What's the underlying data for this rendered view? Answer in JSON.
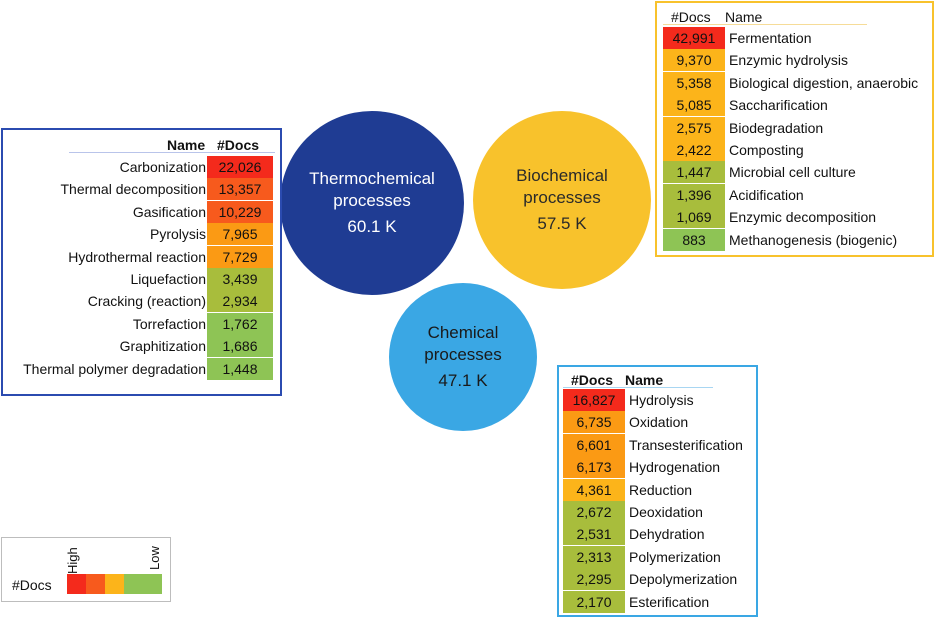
{
  "colors": {
    "thermo": "#1f3c93",
    "bio": "#f8c22c",
    "chem": "#3aa7e4",
    "level_red": "#f42a1c",
    "level_orange_red": "#f75a1d",
    "level_orange": "#fb9a14",
    "level_amber": "#fcb41a",
    "level_olive": "#a8bd3c",
    "level_green": "#8ec455"
  },
  "circles": {
    "thermo": {
      "line1": "Thermochemical",
      "line2": "processes",
      "value": "60.1 K"
    },
    "bio": {
      "line1": "Biochemical",
      "line2": "processes",
      "value": "57.5 K"
    },
    "chem": {
      "line1": "Chemical",
      "line2": "processes",
      "value": "47.1 K"
    }
  },
  "thermo_table": {
    "header_name": "Name",
    "header_docs": "#Docs",
    "rows": [
      {
        "name": "Carbonization",
        "docs": "22,026",
        "level": "red"
      },
      {
        "name": "Thermal decomposition",
        "docs": "13,357",
        "level": "orange_red"
      },
      {
        "name": "Gasification",
        "docs": "10,229",
        "level": "orange_red"
      },
      {
        "name": "Pyrolysis",
        "docs": "7,965",
        "level": "orange"
      },
      {
        "name": "Hydrothermal reaction",
        "docs": "7,729",
        "level": "orange"
      },
      {
        "name": "Liquefaction",
        "docs": "3,439",
        "level": "olive"
      },
      {
        "name": "Cracking (reaction)",
        "docs": "2,934",
        "level": "olive"
      },
      {
        "name": "Torrefaction",
        "docs": "1,762",
        "level": "green"
      },
      {
        "name": "Graphitization",
        "docs": "1,686",
        "level": "green"
      },
      {
        "name": "Thermal polymer degradation",
        "docs": "1,448",
        "level": "green"
      }
    ]
  },
  "bio_table": {
    "header_docs": "#Docs",
    "header_name": "Name",
    "rows": [
      {
        "name": "Fermentation",
        "docs": "42,991",
        "level": "red"
      },
      {
        "name": "Enzymic hydrolysis",
        "docs": "9,370",
        "level": "amber"
      },
      {
        "name": "Biological digestion, anaerobic",
        "docs": "5,358",
        "level": "amber"
      },
      {
        "name": "Saccharification",
        "docs": "5,085",
        "level": "amber"
      },
      {
        "name": "Biodegradation",
        "docs": "2,575",
        "level": "amber"
      },
      {
        "name": "Composting",
        "docs": "2,422",
        "level": "amber"
      },
      {
        "name": "Microbial cell culture",
        "docs": "1,447",
        "level": "olive"
      },
      {
        "name": "Acidification",
        "docs": "1,396",
        "level": "olive"
      },
      {
        "name": "Enzymic decomposition",
        "docs": "1,069",
        "level": "olive"
      },
      {
        "name": "Methanogenesis (biogenic)",
        "docs": "883",
        "level": "green"
      }
    ]
  },
  "chem_table": {
    "header_docs": "#Docs",
    "header_name": "Name",
    "rows": [
      {
        "name": "Hydrolysis",
        "docs": "16,827",
        "level": "red"
      },
      {
        "name": "Oxidation",
        "docs": "6,735",
        "level": "orange"
      },
      {
        "name": "Transesterification",
        "docs": "6,601",
        "level": "orange"
      },
      {
        "name": "Hydrogenation",
        "docs": "6,173",
        "level": "orange"
      },
      {
        "name": "Reduction",
        "docs": "4,361",
        "level": "amber"
      },
      {
        "name": "Deoxidation",
        "docs": "2,672",
        "level": "olive"
      },
      {
        "name": "Dehydration",
        "docs": "2,531",
        "level": "olive"
      },
      {
        "name": "Polymerization",
        "docs": "2,313",
        "level": "olive"
      },
      {
        "name": "Depolymerization",
        "docs": "2,295",
        "level": "olive"
      },
      {
        "name": "Esterification",
        "docs": "2,170",
        "level": "olive"
      }
    ]
  },
  "legend": {
    "label": "#Docs",
    "high": "High",
    "low": "Low",
    "scale": [
      "red",
      "orange_red",
      "amber",
      "green"
    ]
  }
}
